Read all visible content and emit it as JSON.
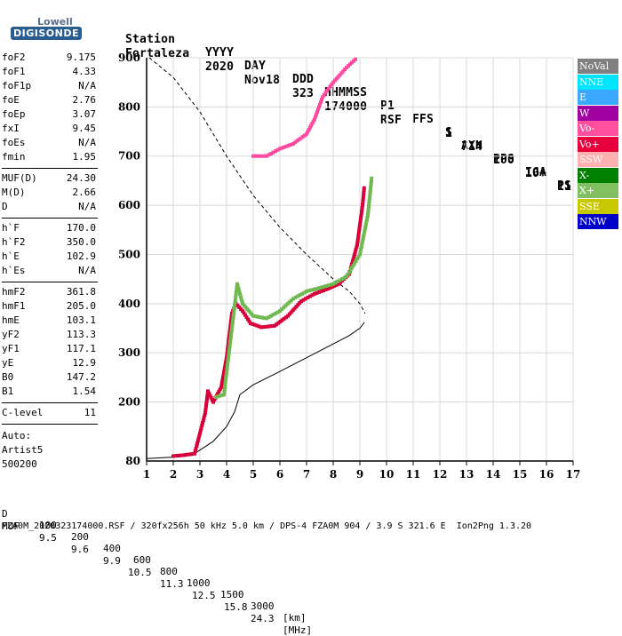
{
  "logo": {
    "line1": "Lowell",
    "line2": "DIGISONDE"
  },
  "header": {
    "labels": [
      "Station",
      "YYYY",
      "DAY",
      "DDD",
      "HHMMSS",
      "P1",
      "FFS",
      "S",
      "AXN",
      "PPS",
      "IGA",
      "PS"
    ],
    "values": [
      "Fortaleza",
      "2020",
      "Nov18",
      "323",
      "174000",
      "RSF",
      "1",
      "714",
      "100",
      "10+",
      "11"
    ]
  },
  "params": {
    "group1": [
      {
        "k": "foF2",
        "v": "9.175"
      },
      {
        "k": "foF1",
        "v": "4.33"
      },
      {
        "k": "foF1p",
        "v": "N/A"
      },
      {
        "k": "foE",
        "v": "2.76"
      },
      {
        "k": "foEp",
        "v": "3.07"
      },
      {
        "k": "fxI",
        "v": "9.45"
      },
      {
        "k": "foEs",
        "v": "N/A"
      },
      {
        "k": "fmin",
        "v": "1.95"
      }
    ],
    "group2": [
      {
        "k": "MUF(D)",
        "v": "24.30"
      },
      {
        "k": "M(D)",
        "v": "2.66"
      },
      {
        "k": "D",
        "v": "N/A"
      }
    ],
    "group3": [
      {
        "k": "h`F",
        "v": "170.0"
      },
      {
        "k": "h`F2",
        "v": "350.0"
      },
      {
        "k": "h`E",
        "v": "102.9"
      },
      {
        "k": "h`Es",
        "v": "N/A"
      }
    ],
    "group4": [
      {
        "k": "hmF2",
        "v": "361.8"
      },
      {
        "k": "hmF1",
        "v": "205.0"
      },
      {
        "k": "hmE",
        "v": "103.1"
      },
      {
        "k": "yF2",
        "v": "113.3"
      },
      {
        "k": "yF1",
        "v": "117.1"
      },
      {
        "k": "yE",
        "v": "12.9"
      },
      {
        "k": "B0",
        "v": "147.2"
      },
      {
        "k": "B1",
        "v": "1.54"
      }
    ],
    "clevel": {
      "k": "C-level",
      "v": "11"
    },
    "auto": [
      "Auto:",
      "Artist5",
      "500200"
    ]
  },
  "legend": [
    {
      "label": "NoVal",
      "bg": "#808080",
      "fg": "#ffffff"
    },
    {
      "label": "NNE",
      "bg": "#00e5ff",
      "fg": "#ffffff"
    },
    {
      "label": "E",
      "bg": "#3aa8ff",
      "fg": "#ffffff"
    },
    {
      "label": "W",
      "bg": "#a000a0",
      "fg": "#ffffff"
    },
    {
      "label": "Vo-",
      "bg": "#ff50a0",
      "fg": "#ffffff"
    },
    {
      "label": "Vo+",
      "bg": "#e8003c",
      "fg": "#ffffff"
    },
    {
      "label": "SSW",
      "bg": "#ffb0b0",
      "fg": "#ffffff"
    },
    {
      "label": "X-",
      "bg": "#008000",
      "fg": "#ffffff"
    },
    {
      "label": "X+",
      "bg": "#80c060",
      "fg": "#ffffff"
    },
    {
      "label": "SSE",
      "bg": "#c8c800",
      "fg": "#ffffff"
    },
    {
      "label": "NNW",
      "bg": "#0000c8",
      "fg": "#ffffff"
    }
  ],
  "footer": {
    "row1_label": "D",
    "row1_values": [
      "100",
      "200",
      "400",
      "600",
      "800",
      "1000",
      "1500",
      "3000"
    ],
    "row1_unit": "[km]",
    "row2_label": "MUF",
    "row2_values": [
      "9.5",
      "9.6",
      "9.9",
      "10.5",
      "11.3",
      "12.5",
      "15.8",
      "24.3"
    ],
    "row2_unit": "[MHz]",
    "row3": "FZA0M_2020323174000.RSF / 320fx256h 50 kHz 5.0 km / DPS-4 FZA0M 904 / 3.9 S 321.6 E  Ion2Png 1.3.20"
  },
  "chart_data": {
    "type": "scatter",
    "xlabel": "",
    "ylabel": "",
    "xlim": [
      1,
      17
    ],
    "ylim": [
      80,
      900
    ],
    "xticks": [
      "1",
      "2",
      "3",
      "4",
      "5",
      "6",
      "7",
      "8",
      "9",
      "10",
      "11",
      "12",
      "13",
      "14",
      "15",
      "16",
      "17"
    ],
    "yticks": [
      "80",
      "200",
      "300",
      "400",
      "500",
      "600",
      "700",
      "800",
      "900"
    ],
    "grid": true,
    "series": [
      {
        "name": "O-trace (Vo+)",
        "color": "#d8003a",
        "points": [
          [
            2.0,
            90
          ],
          [
            2.4,
            92
          ],
          [
            2.8,
            95
          ],
          [
            3.2,
            178
          ],
          [
            3.3,
            222
          ],
          [
            3.5,
            200
          ],
          [
            3.8,
            230
          ],
          [
            4.0,
            290
          ],
          [
            4.2,
            380
          ],
          [
            4.35,
            400
          ],
          [
            4.6,
            385
          ],
          [
            4.9,
            360
          ],
          [
            5.3,
            352
          ],
          [
            5.8,
            355
          ],
          [
            6.3,
            375
          ],
          [
            6.8,
            405
          ],
          [
            7.3,
            420
          ],
          [
            7.8,
            430
          ],
          [
            8.2,
            440
          ],
          [
            8.6,
            460
          ],
          [
            8.9,
            520
          ],
          [
            9.1,
            600
          ],
          [
            9.17,
            640
          ]
        ]
      },
      {
        "name": "X-trace (X+)",
        "color": "#70b850",
        "points": [
          [
            3.6,
            210
          ],
          [
            3.9,
            215
          ],
          [
            4.4,
            440
          ],
          [
            4.6,
            400
          ],
          [
            5.0,
            375
          ],
          [
            5.5,
            370
          ],
          [
            6.0,
            385
          ],
          [
            6.5,
            410
          ],
          [
            7.0,
            425
          ],
          [
            7.5,
            432
          ],
          [
            8.0,
            440
          ],
          [
            8.5,
            455
          ],
          [
            9.0,
            500
          ],
          [
            9.3,
            580
          ],
          [
            9.45,
            660
          ]
        ]
      },
      {
        "name": "Multi-hop (Vo-)",
        "color": "#ff4aa0",
        "points": [
          [
            5.0,
            700
          ],
          [
            5.5,
            700
          ],
          [
            6.0,
            715
          ],
          [
            6.5,
            725
          ],
          [
            7.0,
            745
          ],
          [
            7.3,
            775
          ],
          [
            7.6,
            820
          ],
          [
            8.0,
            850
          ],
          [
            8.5,
            880
          ],
          [
            8.9,
            900
          ]
        ]
      }
    ],
    "profile": [
      [
        1.0,
        85
      ],
      [
        2.0,
        88
      ],
      [
        2.8,
        95
      ],
      [
        3.5,
        120
      ],
      [
        4.0,
        150
      ],
      [
        4.3,
        180
      ],
      [
        4.5,
        215
      ],
      [
        5.0,
        235
      ],
      [
        6.0,
        262
      ],
      [
        7.0,
        290
      ],
      [
        8.0,
        318
      ],
      [
        8.6,
        335
      ],
      [
        9.0,
        350
      ],
      [
        9.17,
        362
      ]
    ],
    "virtual_curve": [
      [
        1.1,
        900
      ],
      [
        2.0,
        860
      ],
      [
        3.0,
        790
      ],
      [
        4.0,
        700
      ],
      [
        5.0,
        620
      ],
      [
        6.0,
        555
      ],
      [
        7.0,
        500
      ],
      [
        8.0,
        450
      ],
      [
        8.6,
        425
      ],
      [
        9.0,
        400
      ],
      [
        9.2,
        380
      ]
    ]
  }
}
